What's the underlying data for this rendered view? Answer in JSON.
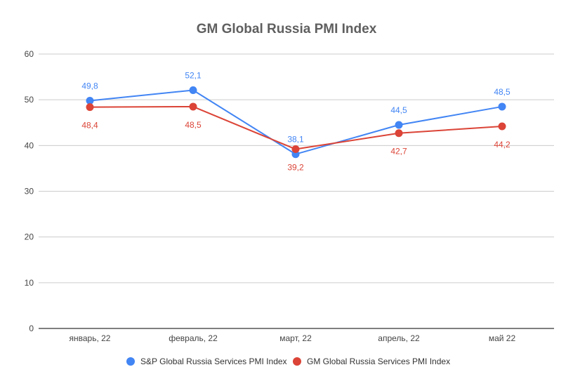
{
  "chart_data": {
    "type": "line",
    "title": "GM Global Russia PMI Index",
    "xlabel": "",
    "ylabel": "",
    "categories": [
      "январь, 22",
      "февраль, 22",
      "март, 22",
      "апрель, 22",
      "май 22"
    ],
    "ylim": [
      0,
      60
    ],
    "yticks": [
      0,
      10,
      20,
      30,
      40,
      50,
      60
    ],
    "grid": true,
    "legend_position": "bottom",
    "series": [
      {
        "name": "S&P Global Russia Services PMI Index",
        "color": "#4285f4",
        "values": [
          49.8,
          52.1,
          38.1,
          44.5,
          48.5
        ],
        "labels": [
          "49,8",
          "52,1",
          "38,1",
          "44,5",
          "48,5"
        ],
        "label_side": "above"
      },
      {
        "name": "GM Global Russia Services PMI Index",
        "color": "#db4437",
        "values": [
          48.4,
          48.5,
          39.2,
          42.7,
          44.2
        ],
        "labels": [
          "48,4",
          "48,5",
          "39,2",
          "42,7",
          "44,2"
        ],
        "label_side": "below"
      }
    ]
  }
}
